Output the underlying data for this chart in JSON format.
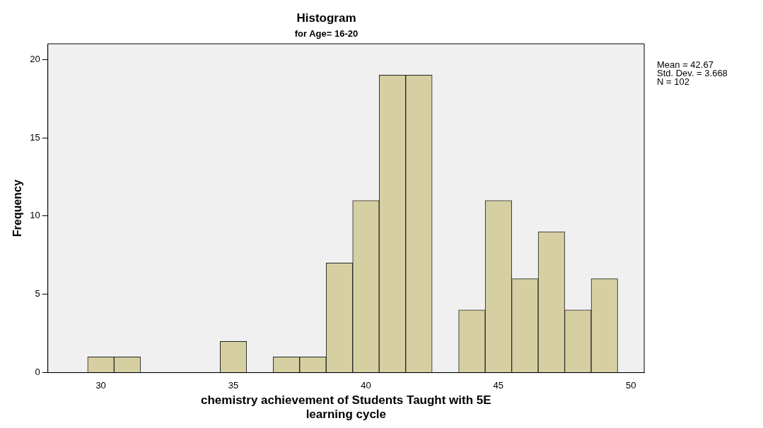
{
  "chart_data": {
    "type": "histogram",
    "title": "Histogram",
    "subtitle": "for Age= 16-20",
    "xlabel": "chemistry achievement of Students Taught with 5E learning cycle",
    "ylabel": "Frequency",
    "bins": [
      29.5,
      30.5,
      31.5,
      32.5,
      33.5,
      34.5,
      35.5,
      36.5,
      37.5,
      38.5,
      39.5,
      40.5,
      41.5,
      42.5,
      43.5,
      44.5,
      45.5,
      46.5,
      47.5,
      48.5,
      49.5
    ],
    "values": [
      1,
      1,
      0,
      0,
      0,
      2,
      0,
      1,
      1,
      7,
      11,
      19,
      19,
      0,
      4,
      11,
      6,
      9,
      4,
      6
    ],
    "color": "#d5cfa2",
    "xlim": [
      28,
      50.5
    ],
    "xticks": [
      30,
      35,
      40,
      45,
      50
    ],
    "ylim": [
      0,
      21
    ],
    "yticks": [
      0,
      5,
      10,
      15,
      20
    ],
    "grid": false,
    "legend": false,
    "annotations": [
      "Mean = 42.67",
      "Std. Dev. = 3.668",
      "N = 102"
    ]
  }
}
